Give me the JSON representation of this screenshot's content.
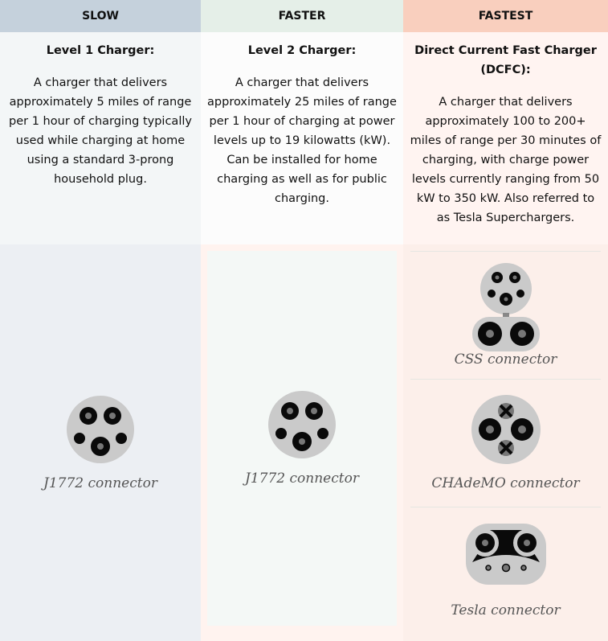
{
  "columns": [
    {
      "header": "SLOW",
      "title": "Level 1 Charger:",
      "description": "A charger that delivers approximately 5 miles of range per 1 hour of charging typically used while charging at home using a standard 3-prong household plug.",
      "connectors": [
        {
          "icon": "j1772-connector-icon",
          "label": "J1772 connector"
        }
      ]
    },
    {
      "header": "FASTER",
      "title": "Level 2 Charger:",
      "description": "A charger that delivers approximately 25 miles of range per 1 hour of charging at power levels up to 19 kilowatts (kW). Can be installed for home charging as well as for public charging.",
      "connectors": [
        {
          "icon": "j1772-connector-icon",
          "label": "J1772 connector"
        }
      ]
    },
    {
      "header": "FASTEST",
      "title": "Direct Current Fast Charger (DCFC):",
      "description": "A charger that delivers approximately 100 to 200+ miles of range per 30 minutes of charging, with charge power levels currently ranging from 50 kW to 350 kW. Also referred to as Tesla Superchargers.",
      "connectors": [
        {
          "icon": "ccs-connector-icon",
          "label": "CSS connector"
        },
        {
          "icon": "chademo-connector-icon",
          "label": "CHAdeMO connector"
        },
        {
          "icon": "tesla-connector-icon",
          "label": "Tesla connector"
        }
      ]
    }
  ],
  "colors": {
    "slow_header": "#c5d1dc",
    "faster_header": "#e5efe8",
    "fastest_header": "#f9cfbe",
    "plug_gray": "#cacaca",
    "plug_dark": "#0a0a0a"
  }
}
